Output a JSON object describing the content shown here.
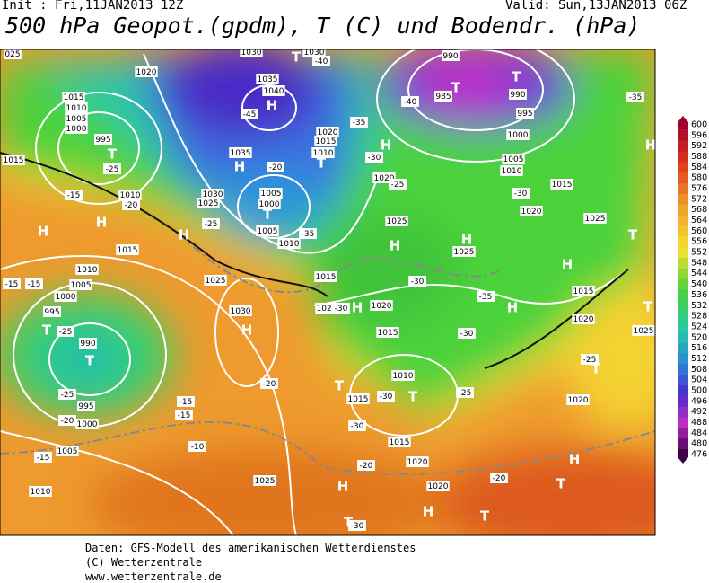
{
  "header": {
    "init": "Init : Fri,11JAN2013 12Z",
    "valid": "Valid: Sun,13JAN2013 06Z",
    "title": "500 hPa Geopot.(gpdm), T (C) und Bodendr. (hPa)"
  },
  "colorbar": {
    "labels": [
      600,
      596,
      592,
      588,
      584,
      580,
      576,
      572,
      568,
      564,
      560,
      556,
      552,
      548,
      544,
      540,
      536,
      532,
      528,
      524,
      520,
      516,
      512,
      508,
      504,
      500,
      496,
      492,
      488,
      484,
      480,
      476
    ]
  },
  "map": {
    "isobar_labels": [
      "1020",
      "1015",
      "1010",
      "1005",
      "1000",
      "995",
      "1015",
      "1010",
      "1030",
      "1035",
      "1040",
      "1035",
      "1030",
      "1025",
      "1005",
      "1000",
      "1005",
      "1010",
      "1020",
      "1015",
      "1010",
      "990",
      "985",
      "990",
      "995",
      "1000",
      "1005",
      "1010",
      "1015",
      "1020",
      "1025",
      "1020",
      "1025",
      "1025",
      "1015",
      "1020",
      "1020",
      "1015",
      "1010",
      "1015",
      "1015",
      "1020",
      "1020",
      "1015",
      "1020",
      "1020",
      "1025",
      "1025",
      "1030",
      "1015",
      "1010",
      "1005",
      "1000",
      "995",
      "990",
      "995",
      "1000",
      "1005",
      "1010",
      "1025",
      "1030",
      "025"
    ],
    "temperature_labels": [
      "-40",
      "-45",
      "-35",
      "-35",
      "-30",
      "-25",
      "-40",
      "-35",
      "-30",
      "-25",
      "-20",
      "-25",
      "-15",
      "-20",
      "-15",
      "-15",
      "-25",
      "-25",
      "-20",
      "-15",
      "-15",
      "-10",
      "-15",
      "-20",
      "-30",
      "-35",
      "-30",
      "-25",
      "-30",
      "-30",
      "-20",
      "-20",
      "-25",
      "-30",
      "-30"
    ],
    "centers": [
      "T",
      "T",
      "T",
      "T",
      "H",
      "H",
      "T",
      "H",
      "T",
      "H",
      "H",
      "H",
      "H",
      "H",
      "H",
      "H",
      "H",
      "T",
      "T",
      "H",
      "T",
      "T",
      "T",
      "H",
      "T",
      "H",
      "H",
      "T",
      "T",
      "H",
      "T",
      "T"
    ]
  },
  "footer": [
    "Daten: GFS-Modell des amerikanischen Wetterdienstes",
    "(C) Wetterzentrale",
    "www.wetterzentrale.de"
  ]
}
